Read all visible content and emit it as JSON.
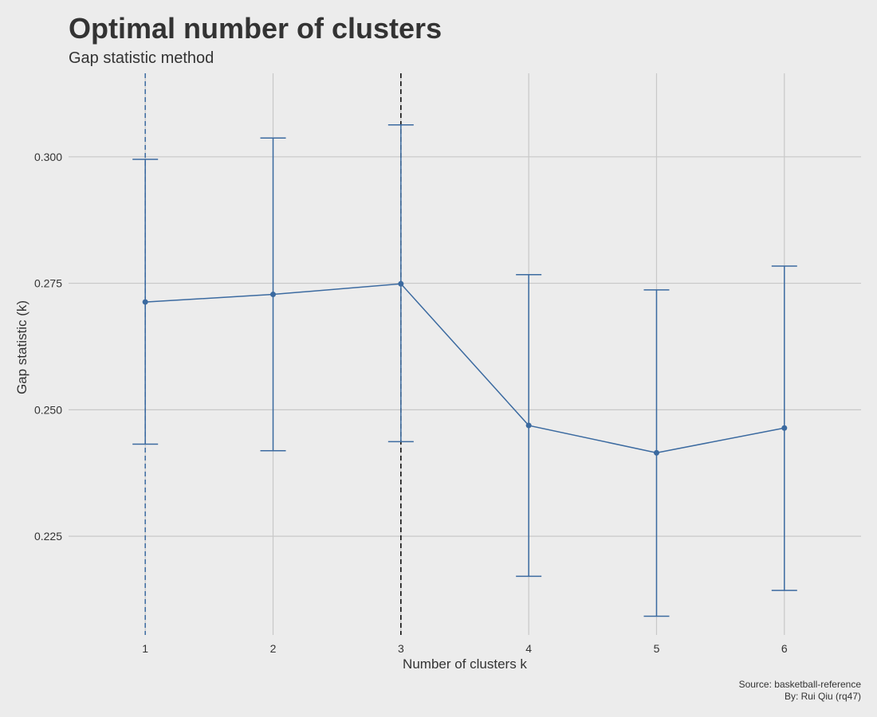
{
  "chart_data": {
    "type": "line",
    "title": "Optimal number of clusters",
    "subtitle": "Gap statistic method",
    "xlabel": "Number of clusters k",
    "ylabel": "Gap statistic (k)",
    "x": [
      1,
      2,
      3,
      4,
      5,
      6
    ],
    "xticks": [
      "1",
      "2",
      "3",
      "4",
      "5",
      "6"
    ],
    "xlim": [
      0.4,
      6.6
    ],
    "yticks": [
      "0.225",
      "0.250",
      "0.275",
      "0.300"
    ],
    "ylim": [
      0.2055,
      0.3165
    ],
    "series": [
      {
        "gap": [
          0.2713,
          0.2728,
          0.2749,
          0.2469,
          0.2415,
          0.2464
        ],
        "error_lower": [
          0.2432,
          0.2419,
          0.2437,
          0.2171,
          0.2092,
          0.2143
        ],
        "error_upper": [
          0.2995,
          0.3037,
          0.3063,
          0.2767,
          0.2737,
          0.2784
        ],
        "color": "#3b6aa0"
      }
    ],
    "vlines": [
      {
        "x": 1,
        "style": "dashed",
        "color": "#3b6aa0"
      },
      {
        "x": 3,
        "style": "dashed",
        "color": "#000000"
      }
    ],
    "grid": true
  },
  "caption": {
    "source": "Source: basketball-reference",
    "author": "By: Rui Qiu (rq47)"
  }
}
